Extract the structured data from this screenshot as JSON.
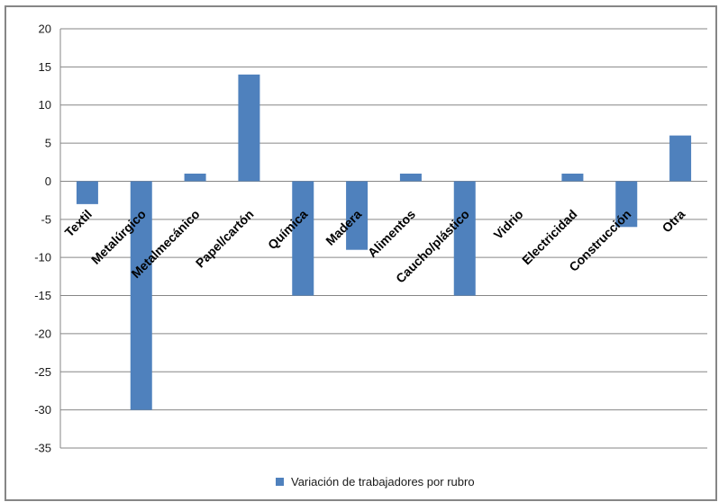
{
  "chart_data": {
    "type": "bar",
    "categories": [
      "Textil",
      "Metalúrgico",
      "Metalmecánico",
      "Papel/cartón",
      "Química",
      "Madera",
      "Alimentos",
      "Caucho/plástico",
      "Vidrio",
      "Electricidad",
      "Construcción",
      "Otra"
    ],
    "series": [
      {
        "name": "Variación de trabajadores por rubro",
        "values": [
          -3,
          -30,
          1,
          14,
          -15,
          -9,
          1,
          -15,
          0,
          1,
          -6,
          6
        ],
        "color": "#4F81BD"
      }
    ],
    "ylim": [
      -35,
      20
    ],
    "yticks": [
      20,
      15,
      10,
      5,
      0,
      -5,
      -10,
      -15,
      -20,
      -25,
      -30,
      -35
    ],
    "grid": true,
    "legend_position": "bottom"
  }
}
